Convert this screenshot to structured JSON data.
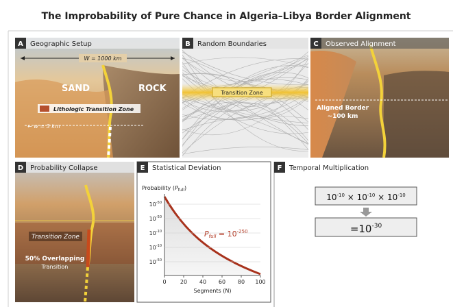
{
  "title": "The Improbability of Pure Chance in Algeria–Libya Border Alignment",
  "panels": {
    "a": {
      "letter": "A",
      "title": "Geographic Setup",
      "width_label": "W = 1000 km",
      "left": "SAND",
      "right": "ROCK",
      "zone": "Lithologic Transition Zone",
      "w_label": "← w = 3 km"
    },
    "b": {
      "letter": "B",
      "title": "Random Boundaries",
      "zone": "Transition Zone"
    },
    "c": {
      "letter": "C",
      "title": "Observed Alignment",
      "label1": "Aligned Border",
      "label2": "~100 km"
    },
    "d": {
      "letter": "D",
      "title": "Probability Collapse",
      "zone": "Transition Zone",
      "overlap1": "50% Overlapping",
      "overlap2": "Transition"
    },
    "e": {
      "letter": "E",
      "title": "Statistical Deviation",
      "ylabel": "Probability (",
      "ylabel_var": "P",
      "ylabel_sub": "full",
      "ylabel_end": ")",
      "yticks": [
        {
          "base": "10",
          "exp": "-50"
        },
        {
          "base": "10",
          "exp": "-50"
        },
        {
          "base": "10",
          "exp": "-10"
        },
        {
          "base": "10",
          "exp": "-10"
        },
        {
          "base": "10",
          "exp": "-50"
        }
      ],
      "xlabel": "Segments (N)",
      "xlim": [
        0,
        100
      ],
      "xticks": [
        0,
        20,
        40,
        60,
        80,
        100
      ],
      "curve_p": "P",
      "curve_sub": "full",
      "curve_eq": " = 10",
      "curve_exp": "-250"
    },
    "f": {
      "letter": "F",
      "title": "Temporal Multiplication",
      "terms": [
        {
          "base": "10",
          "exp": "-10"
        },
        {
          "base": "10",
          "exp": "-10"
        },
        {
          "base": "10",
          "exp": "-10"
        }
      ],
      "times": " × ",
      "result": "=10",
      "result_exp": "-30"
    }
  }
}
